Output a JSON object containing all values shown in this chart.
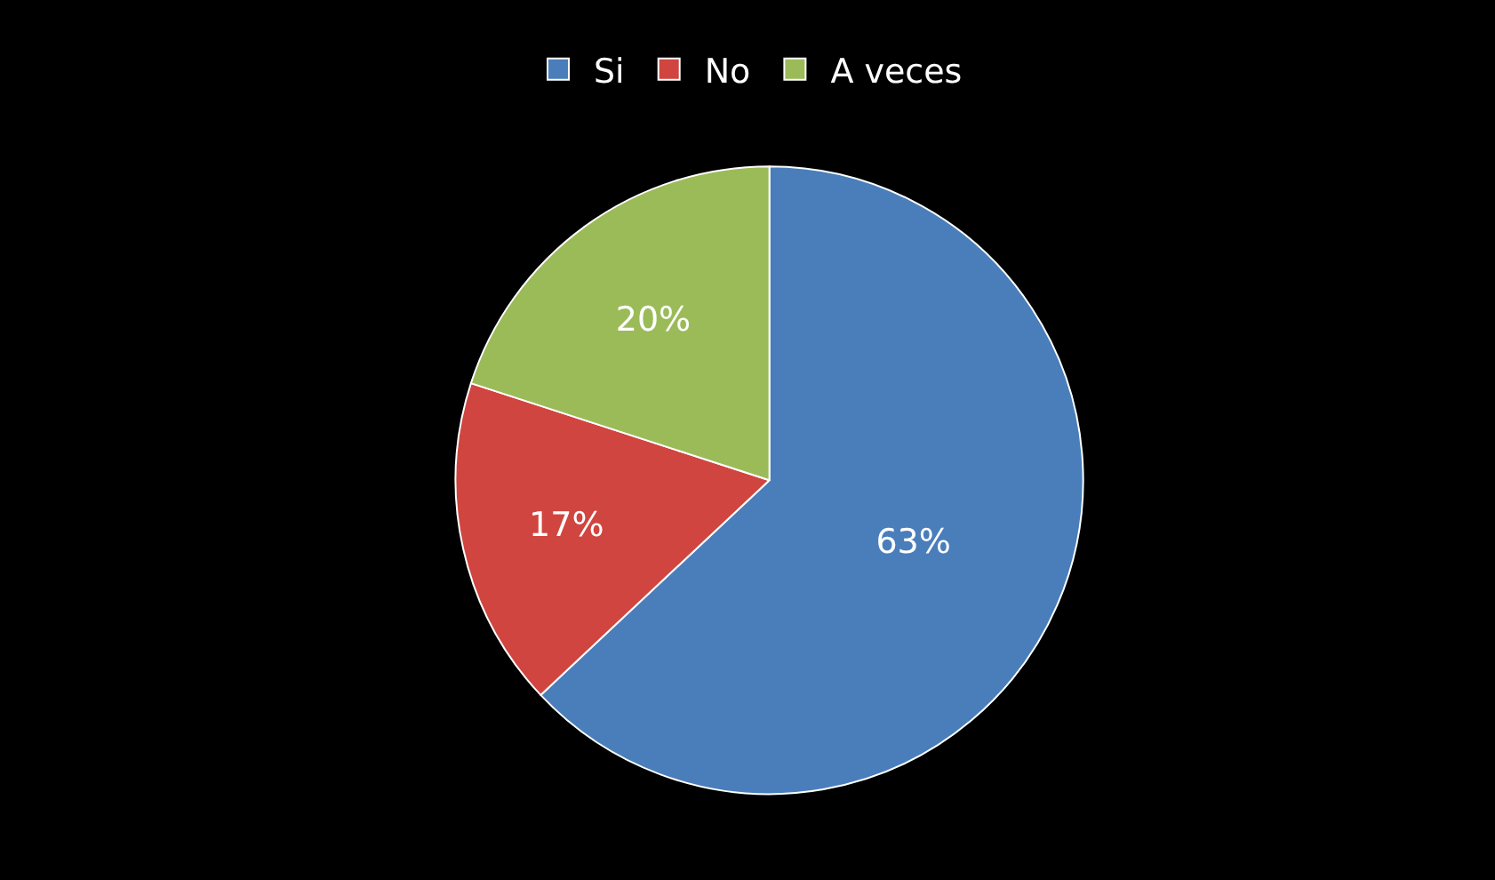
{
  "chart_data": {
    "type": "pie",
    "categories": [
      "Si",
      "No",
      "A veces"
    ],
    "values": [
      63,
      17,
      20
    ],
    "colors": [
      "#4a7ebb",
      "#d0453f",
      "#9bbb59"
    ],
    "value_labels": [
      "63%",
      "17%",
      "20%"
    ],
    "legend": "top"
  }
}
